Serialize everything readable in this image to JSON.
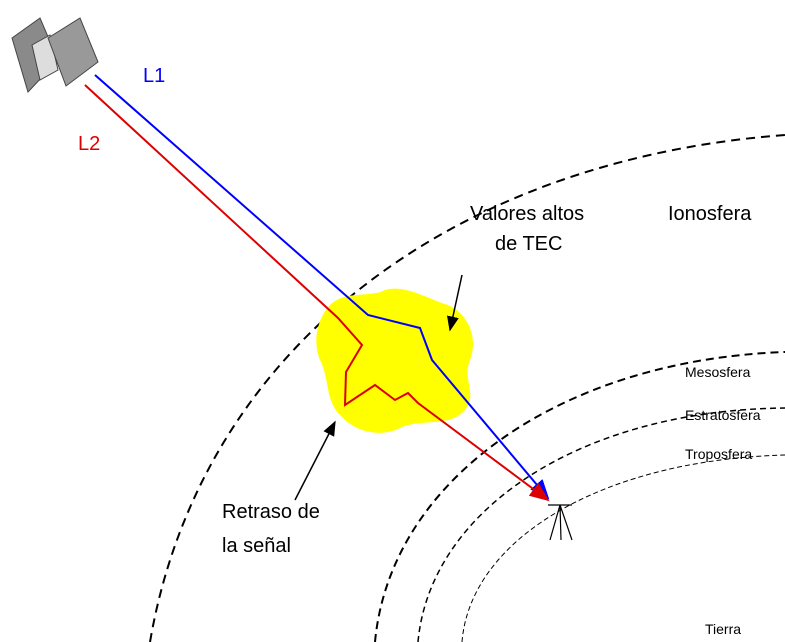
{
  "labels": {
    "l1": "L1",
    "l2": "L2",
    "tec": [
      "Valores altos",
      "de TEC"
    ],
    "ionosfera": "Ionosfera",
    "mesosfera": "Mesosfera",
    "estratosfera": "Estratosfera",
    "troposfera": "Troposfera",
    "retraso": [
      "Retraso de",
      "la señal"
    ],
    "tierra": "Tierra"
  }
}
